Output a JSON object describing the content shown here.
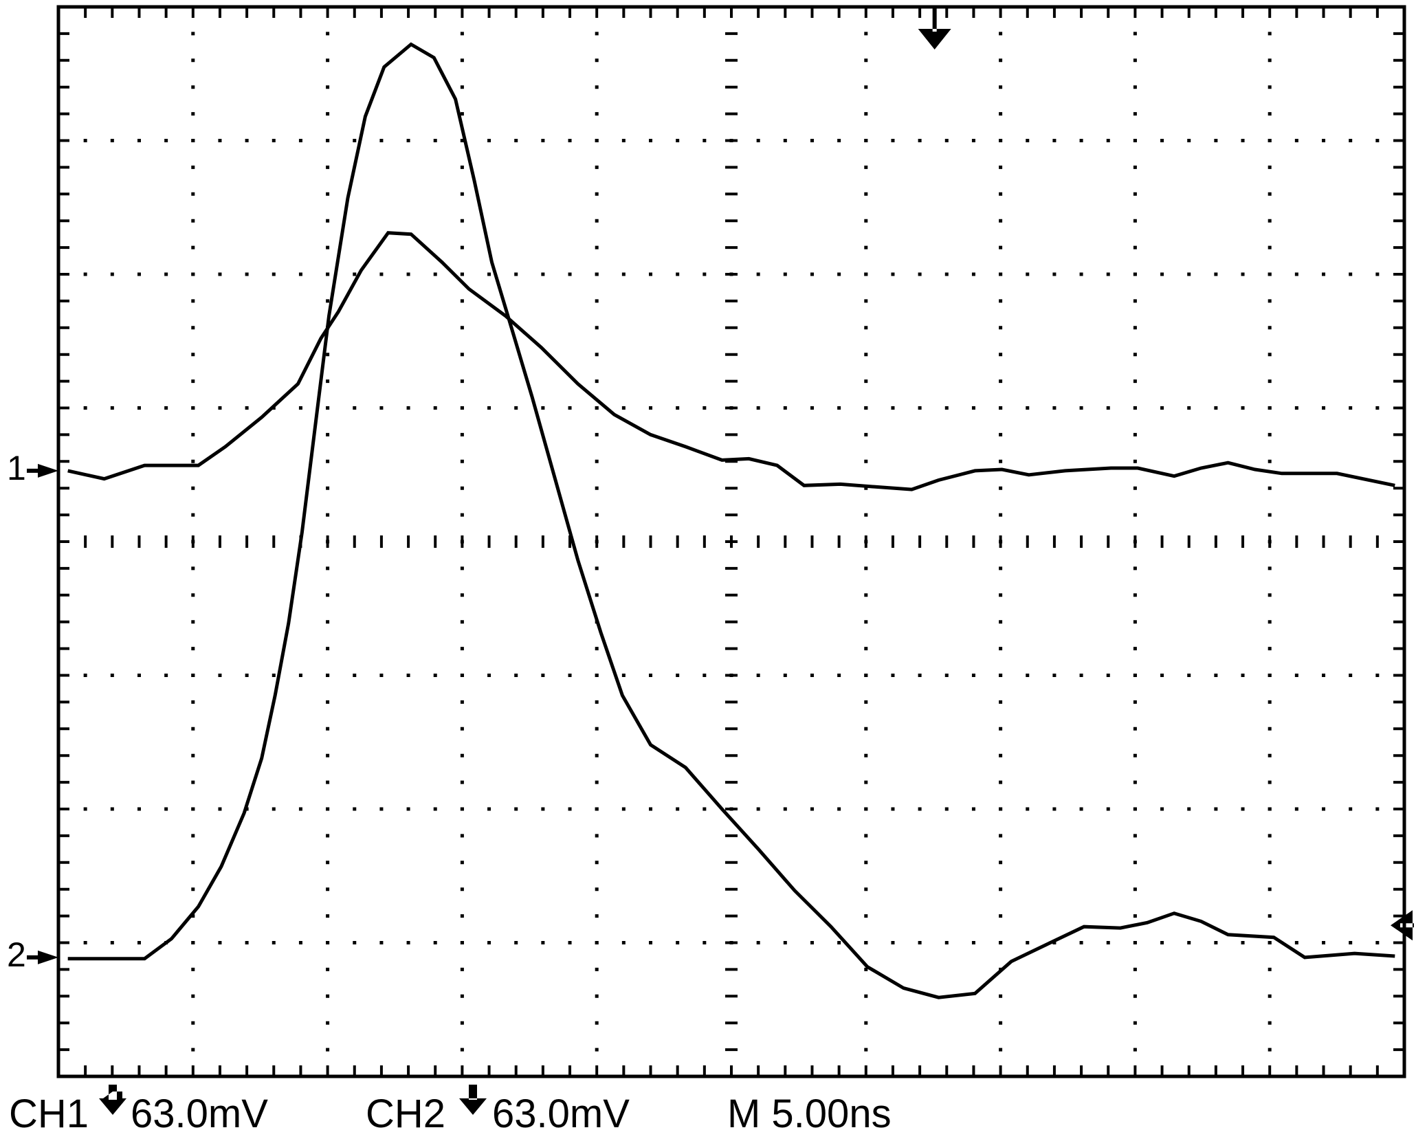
{
  "chart_data": {
    "type": "line",
    "xlim": [
      0,
      10
    ],
    "xticks": [
      0,
      1,
      2,
      3,
      4,
      5,
      6,
      7,
      8,
      9,
      10
    ],
    "ylim": [
      -4,
      4
    ],
    "yticks": [
      -4,
      -3,
      -2,
      -1,
      0,
      1,
      2,
      3,
      4
    ],
    "grid": true,
    "timebase": "M 5.00ns",
    "trigger_position": 6.51,
    "trigger_level": -2.87,
    "series": [
      {
        "name": "CH1",
        "scale": "63.0mV",
        "marker": "1",
        "offset": 0.53,
        "color": "#000000",
        "x": [
          0.07,
          0.34,
          0.64,
          1.04,
          1.24,
          1.51,
          1.78,
          1.95,
          2.08,
          2.25,
          2.45,
          2.62,
          2.85,
          3.05,
          3.32,
          3.59,
          3.86,
          4.13,
          4.4,
          4.66,
          4.93,
          5.13,
          5.34,
          5.54,
          5.81,
          6.07,
          6.34,
          6.54,
          6.81,
          7.01,
          7.21,
          7.48,
          7.82,
          8.02,
          8.29,
          8.49,
          8.69,
          8.89,
          9.09,
          9.5,
          9.93
        ],
        "values": [
          0.53,
          0.47,
          0.57,
          0.57,
          0.71,
          0.93,
          1.18,
          1.52,
          1.72,
          2.03,
          2.31,
          2.3,
          2.09,
          1.89,
          1.69,
          1.45,
          1.18,
          0.95,
          0.8,
          0.71,
          0.61,
          0.62,
          0.57,
          0.42,
          0.43,
          0.41,
          0.39,
          0.46,
          0.53,
          0.54,
          0.5,
          0.53,
          0.55,
          0.55,
          0.49,
          0.55,
          0.59,
          0.54,
          0.51,
          0.51,
          0.42
        ]
      },
      {
        "name": "CH2",
        "scale": "63.0mV",
        "marker": "2",
        "offset": -3.11,
        "color": "#000000",
        "x": [
          0.07,
          0.64,
          0.84,
          1.04,
          1.21,
          1.38,
          1.51,
          1.61,
          1.71,
          1.81,
          1.91,
          2.01,
          2.15,
          2.28,
          2.42,
          2.62,
          2.79,
          2.95,
          3.09,
          3.22,
          3.36,
          3.52,
          3.69,
          3.86,
          4.03,
          4.19,
          4.4,
          4.66,
          4.93,
          5.2,
          5.47,
          5.74,
          6.01,
          6.28,
          6.54,
          6.81,
          7.08,
          7.35,
          7.62,
          7.89,
          8.09,
          8.29,
          8.49,
          8.69,
          9.03,
          9.26,
          9.63,
          9.93
        ],
        "values": [
          -3.12,
          -3.12,
          -2.97,
          -2.73,
          -2.43,
          -2.03,
          -1.62,
          -1.15,
          -0.61,
          0.07,
          0.88,
          1.69,
          2.57,
          3.18,
          3.55,
          3.72,
          3.62,
          3.31,
          2.7,
          2.09,
          1.62,
          1.08,
          0.47,
          -0.14,
          -0.68,
          -1.15,
          -1.52,
          -1.69,
          -2.0,
          -2.3,
          -2.61,
          -2.88,
          -3.18,
          -3.34,
          -3.41,
          -3.38,
          -3.14,
          -3.01,
          -2.88,
          -2.89,
          -2.85,
          -2.78,
          -2.84,
          -2.94,
          -2.96,
          -3.11,
          -3.08,
          -3.1
        ]
      }
    ]
  }
}
